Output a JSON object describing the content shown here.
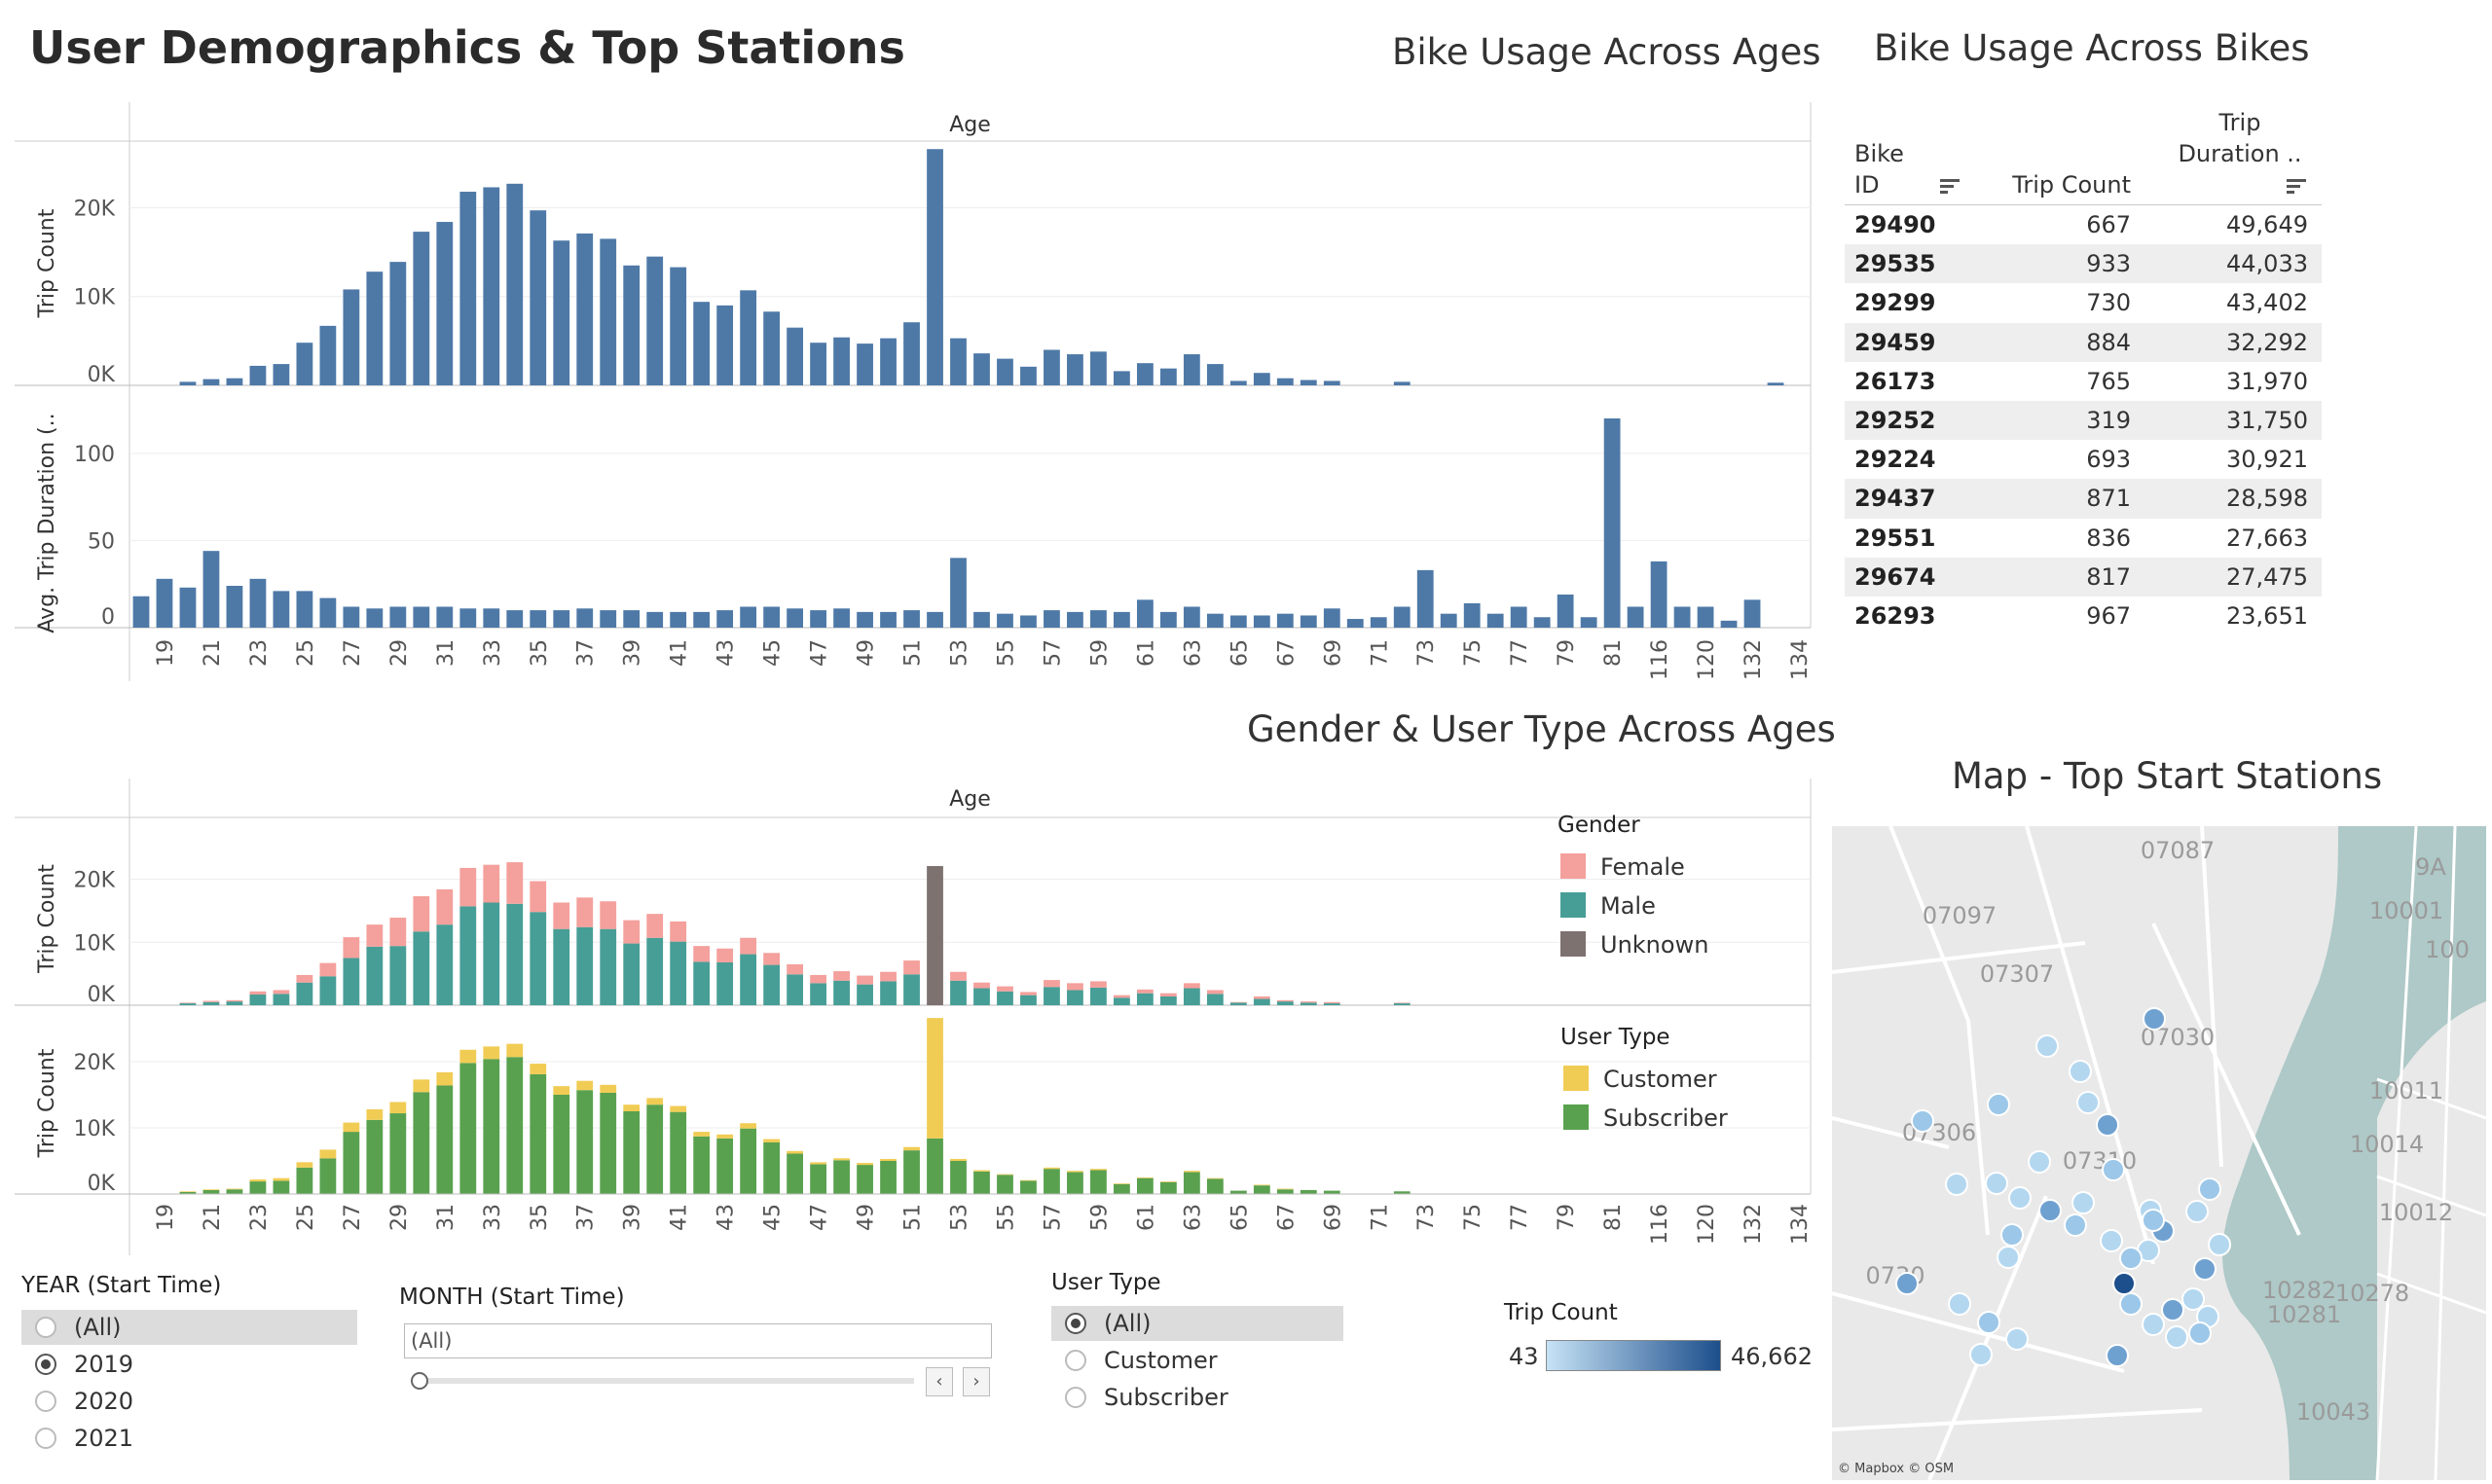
{
  "dashboard": {
    "title": "User Demographics & Top Stations"
  },
  "titles": {
    "ages": "Bike Usage Across Ages",
    "bikes": "Bike Usage Across Bikes",
    "gender": "Gender & User Type Across Ages",
    "map": "Map - Top Start Stations"
  },
  "chart_data": [
    {
      "type": "bar",
      "title": "Bike Usage Across Ages",
      "xlabel": "Age",
      "categories": [
        "18",
        "19",
        "20",
        "21",
        "22",
        "23",
        "24",
        "25",
        "26",
        "27",
        "28",
        "29",
        "30",
        "31",
        "32",
        "33",
        "34",
        "35",
        "36",
        "37",
        "38",
        "39",
        "40",
        "41",
        "42",
        "43",
        "44",
        "45",
        "46",
        "47",
        "48",
        "49",
        "50",
        "51",
        "52",
        "53",
        "54",
        "55",
        "56",
        "57",
        "58",
        "59",
        "60",
        "61",
        "62",
        "63",
        "64",
        "65",
        "66",
        "67",
        "68",
        "69",
        "70",
        "71",
        "72",
        "73",
        "74",
        "75",
        "76",
        "77",
        "78",
        "79",
        "80",
        "81",
        "82",
        "116",
        "118",
        "120",
        "130",
        "132",
        "133",
        "134"
      ],
      "x_tick_labels": [
        "19",
        "21",
        "23",
        "25",
        "27",
        "29",
        "31",
        "33",
        "35",
        "37",
        "39",
        "41",
        "43",
        "45",
        "47",
        "49",
        "51",
        "53",
        "55",
        "57",
        "59",
        "61",
        "63",
        "65",
        "67",
        "69",
        "71",
        "73",
        "75",
        "77",
        "79",
        "81",
        "116",
        "120",
        "132",
        "134"
      ],
      "series": [
        {
          "ylabel": "Trip Count",
          "ylim": [
            0,
            27500
          ],
          "yticks": [
            "0K",
            "10K",
            "20K"
          ],
          "values": [
            0,
            0,
            400,
            700,
            800,
            2200,
            2400,
            4800,
            6700,
            10800,
            12800,
            13900,
            17300,
            18400,
            21800,
            22300,
            22700,
            19700,
            16300,
            17100,
            16500,
            13500,
            14500,
            13300,
            9400,
            9000,
            10700,
            8300,
            6500,
            4800,
            5400,
            4700,
            5300,
            7100,
            26600,
            5300,
            3600,
            3000,
            2100,
            4000,
            3500,
            3800,
            1600,
            2500,
            1900,
            3500,
            2400,
            500,
            1400,
            800,
            600,
            500,
            0,
            0,
            400,
            0,
            0,
            0,
            0,
            0,
            0,
            0,
            0,
            0,
            0,
            0,
            0,
            0,
            0,
            0,
            300,
            0
          ]
        },
        {
          "ylabel": "Avg. Trip Duration (..",
          "ylim": [
            0,
            120
          ],
          "yticks": [
            "0",
            "50",
            "100"
          ],
          "values": [
            18,
            28,
            23,
            44,
            24,
            28,
            21,
            21,
            17,
            12,
            11,
            12,
            12,
            12,
            11,
            11,
            10,
            10,
            10,
            11,
            10,
            10,
            9,
            9,
            9,
            10,
            12,
            12,
            11,
            10,
            11,
            9,
            9,
            10,
            9,
            40,
            9,
            8,
            7,
            10,
            9,
            10,
            9,
            16,
            9,
            12,
            8,
            7,
            7,
            8,
            7,
            11,
            5,
            6,
            12,
            33,
            8,
            14,
            8,
            12,
            6,
            19,
            6,
            120,
            12,
            38,
            12,
            12,
            4,
            16,
            0,
            0
          ]
        }
      ]
    },
    {
      "type": "bar",
      "title": "Bike Usage Across Bikes",
      "columns": [
        "Bike ID",
        "Trip Count",
        "Trip Duration .."
      ],
      "rows": [
        [
          "29490",
          "667",
          "49,649"
        ],
        [
          "29535",
          "933",
          "44,033"
        ],
        [
          "29299",
          "730",
          "43,402"
        ],
        [
          "29459",
          "884",
          "32,292"
        ],
        [
          "26173",
          "765",
          "31,970"
        ],
        [
          "29252",
          "319",
          "31,750"
        ],
        [
          "29224",
          "693",
          "30,921"
        ],
        [
          "29437",
          "871",
          "28,598"
        ],
        [
          "29551",
          "836",
          "27,663"
        ],
        [
          "29674",
          "817",
          "27,475"
        ],
        [
          "26293",
          "967",
          "23,651"
        ]
      ]
    },
    {
      "type": "bar",
      "title": "Gender & User Type Across Ages",
      "xlabel": "Age",
      "ylabel": "Trip Count",
      "ylim": [
        0,
        27500
      ],
      "yticks": [
        "0K",
        "10K",
        "20K"
      ],
      "legends": [
        {
          "title": "Gender",
          "entries": [
            {
              "label": "Female",
              "color": "#f4a09c"
            },
            {
              "label": "Male",
              "color": "#479e96"
            },
            {
              "label": "Unknown",
              "color": "#7d7270"
            }
          ]
        },
        {
          "title": "User Type",
          "entries": [
            {
              "label": "Customer",
              "color": "#f1cc55"
            },
            {
              "label": "Subscriber",
              "color": "#59a14f"
            }
          ]
        }
      ],
      "gender_series": [
        {
          "name": "Male",
          "values": [
            0,
            0,
            300,
            500,
            600,
            1700,
            1800,
            3600,
            4600,
            7500,
            9300,
            9400,
            11700,
            12800,
            15700,
            16300,
            16100,
            14800,
            12100,
            12400,
            12100,
            9800,
            10700,
            10100,
            6900,
            6800,
            8100,
            6400,
            4900,
            3500,
            3900,
            3300,
            3800,
            4900,
            0,
            3900,
            2700,
            2200,
            1600,
            2900,
            2400,
            2800,
            1200,
            1900,
            1400,
            2700,
            1800,
            400,
            1000,
            600,
            400,
            300,
            0,
            0,
            300,
            0,
            0,
            0,
            0,
            0,
            0,
            0,
            0,
            0,
            0,
            0,
            0,
            0,
            0,
            0,
            0,
            0
          ]
        },
        {
          "name": "Female",
          "values": [
            0,
            0,
            100,
            200,
            200,
            500,
            600,
            1200,
            2100,
            3300,
            3500,
            4500,
            5600,
            5600,
            6100,
            6000,
            6600,
            4900,
            4200,
            4700,
            4400,
            3700,
            3800,
            3200,
            2500,
            2200,
            2600,
            1900,
            1600,
            1300,
            1500,
            1400,
            1500,
            2200,
            0,
            1400,
            900,
            800,
            500,
            1100,
            1100,
            1000,
            400,
            600,
            500,
            800,
            600,
            100,
            400,
            200,
            200,
            200,
            0,
            0,
            100,
            0,
            0,
            0,
            0,
            0,
            0,
            0,
            0,
            0,
            0,
            0,
            0,
            0,
            0,
            0,
            0,
            0
          ]
        },
        {
          "name": "Unknown",
          "values": [
            0,
            0,
            0,
            0,
            0,
            0,
            0,
            0,
            0,
            0,
            0,
            0,
            0,
            0,
            0,
            0,
            0,
            0,
            0,
            0,
            0,
            0,
            0,
            0,
            0,
            0,
            0,
            0,
            0,
            0,
            0,
            0,
            0,
            0,
            22100,
            0,
            0,
            0,
            0,
            0,
            0,
            0,
            0,
            0,
            0,
            0,
            0,
            0,
            0,
            0,
            0,
            0,
            0,
            0,
            0,
            0,
            0,
            0,
            0,
            0,
            0,
            0,
            0,
            0,
            0,
            0,
            0,
            0,
            0,
            0,
            0,
            0
          ]
        }
      ],
      "usertype_series": [
        {
          "name": "Subscriber",
          "values": [
            0,
            0,
            300,
            600,
            700,
            1900,
            2000,
            4000,
            5400,
            9400,
            11200,
            12200,
            15400,
            16400,
            19800,
            20400,
            20700,
            18100,
            15000,
            15700,
            15300,
            12500,
            13500,
            12400,
            8700,
            8400,
            9900,
            7800,
            6100,
            4500,
            5100,
            4400,
            5000,
            6600,
            8400,
            5000,
            3400,
            2900,
            2000,
            3800,
            3300,
            3600,
            1500,
            2400,
            1800,
            3300,
            2300,
            500,
            1300,
            700,
            600,
            500,
            0,
            0,
            400,
            0,
            0,
            0,
            0,
            0,
            0,
            0,
            0,
            0,
            0,
            0,
            0,
            0,
            0,
            0,
            0,
            0
          ]
        },
        {
          "name": "Customer",
          "values": [
            0,
            0,
            100,
            100,
            100,
            300,
            400,
            800,
            1300,
            1400,
            1600,
            1700,
            1900,
            2000,
            2000,
            1900,
            2000,
            1600,
            1300,
            1400,
            1200,
            1000,
            1000,
            900,
            700,
            600,
            800,
            500,
            400,
            300,
            300,
            300,
            300,
            500,
            18200,
            300,
            200,
            100,
            100,
            200,
            200,
            200,
            100,
            100,
            100,
            200,
            100,
            0,
            100,
            100,
            0,
            0,
            0,
            0,
            0,
            0,
            0,
            0,
            0,
            0,
            0,
            0,
            0,
            0,
            0,
            0,
            0,
            0,
            0,
            0,
            0,
            0
          ]
        }
      ]
    },
    {
      "type": "scatter",
      "title": "Map - Top Start Stations",
      "color_legend": {
        "title": "Trip Count",
        "min": "43",
        "max": "46,662"
      }
    }
  ],
  "filters": {
    "year": {
      "title": "YEAR (Start Time)",
      "options": [
        "(All)",
        "2019",
        "2020",
        "2021"
      ],
      "selected": "2019"
    },
    "month": {
      "title": "MONTH (Start Time)",
      "value": "(All)"
    },
    "usertype": {
      "title": "User Type",
      "options": [
        "(All)",
        "Customer",
        "Subscriber"
      ],
      "selected": "(All)"
    }
  },
  "map": {
    "credit": "© Mapbox © OSM",
    "labels": [
      "07087",
      "07097",
      "07307",
      "07030",
      "10001",
      "10011",
      "07306",
      "07310",
      "10014",
      "10012",
      "0730",
      "10282",
      "10281",
      "10278",
      "10043",
      "9A",
      "100"
    ]
  },
  "colors": {
    "bar_blue": "#4e79a7",
    "female": "#f4a09c",
    "male": "#479e96",
    "unknown": "#7d7270",
    "customer": "#f1cc55",
    "subscriber": "#59a14f"
  }
}
